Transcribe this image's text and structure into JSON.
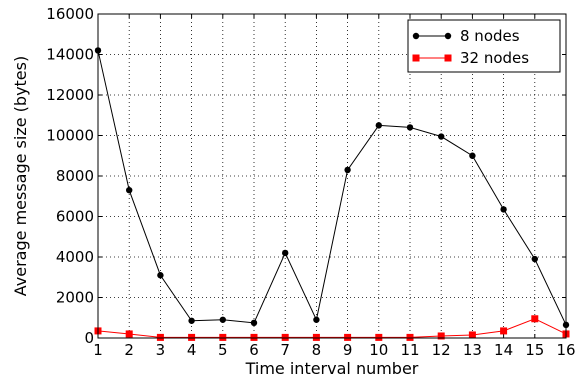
{
  "chart_data": {
    "type": "line",
    "xlabel": "Time interval number",
    "ylabel": "Average message size (bytes)",
    "xlim": [
      1,
      16
    ],
    "ylim": [
      0,
      16000
    ],
    "x_ticks": [
      1,
      2,
      3,
      4,
      5,
      6,
      7,
      8,
      9,
      10,
      11,
      12,
      13,
      14,
      15,
      16
    ],
    "y_ticks": [
      0,
      2000,
      4000,
      6000,
      8000,
      10000,
      12000,
      14000,
      16000
    ],
    "grid": true,
    "grid_style": "dotted",
    "legend_position": "top-right",
    "x": [
      1,
      2,
      3,
      4,
      5,
      6,
      7,
      8,
      9,
      10,
      11,
      12,
      13,
      14,
      15,
      16
    ],
    "series": [
      {
        "name": "8 nodes",
        "color": "#000000",
        "marker": "circle",
        "values": [
          14200,
          7300,
          3100,
          850,
          900,
          750,
          4200,
          900,
          8300,
          10500,
          10400,
          9950,
          9000,
          6350,
          3900,
          650
        ]
      },
      {
        "name": "32 nodes",
        "color": "#ff0000",
        "marker": "square",
        "values": [
          350,
          200,
          30,
          30,
          30,
          30,
          30,
          30,
          30,
          30,
          30,
          100,
          150,
          350,
          950,
          200
        ]
      }
    ]
  }
}
